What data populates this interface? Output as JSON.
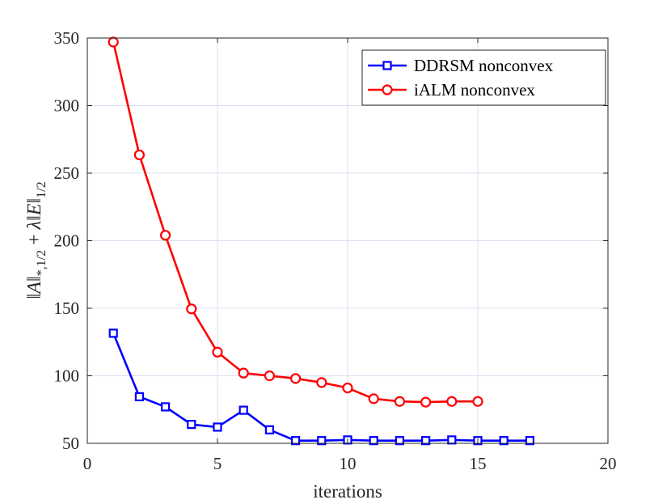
{
  "chart_data": {
    "type": "line",
    "xlabel": "iterations",
    "ylabel": "||A||*,1/2 + λ||E||1/2",
    "ylabel_parts": {
      "bars1": "‖",
      "A": "A",
      "bars2": "‖",
      "sub1": "*,1/2",
      "plus": " + ",
      "lambda": "λ",
      "bars3": "‖",
      "E": "E",
      "bars4": "‖",
      "sub2": "1/2"
    },
    "xlim": [
      0,
      20
    ],
    "ylim": [
      50,
      350
    ],
    "xticks": [
      0,
      5,
      10,
      15,
      20
    ],
    "yticks": [
      50,
      100,
      150,
      200,
      250,
      300,
      350
    ],
    "grid": true,
    "legend_position": "top-right",
    "series": [
      {
        "name": "DDRSM nonconvex",
        "color": "#0000ff",
        "marker": "square",
        "x": [
          1,
          2,
          3,
          4,
          5,
          6,
          7,
          8,
          9,
          10,
          11,
          12,
          13,
          14,
          15,
          16,
          17
        ],
        "y": [
          131.5,
          84.5,
          77,
          64,
          62,
          74.5,
          60,
          52,
          52,
          52.5,
          52,
          52,
          52,
          52.5,
          52,
          52,
          52
        ]
      },
      {
        "name": "iALM nonconvex",
        "color": "#ff0000",
        "marker": "circle",
        "x": [
          1,
          2,
          3,
          4,
          5,
          6,
          7,
          8,
          9,
          10,
          11,
          12,
          13,
          14,
          15
        ],
        "y": [
          347,
          263.5,
          204,
          149.5,
          117.5,
          102,
          100,
          98,
          95,
          91,
          83,
          81,
          80.5,
          81,
          81
        ]
      }
    ]
  }
}
